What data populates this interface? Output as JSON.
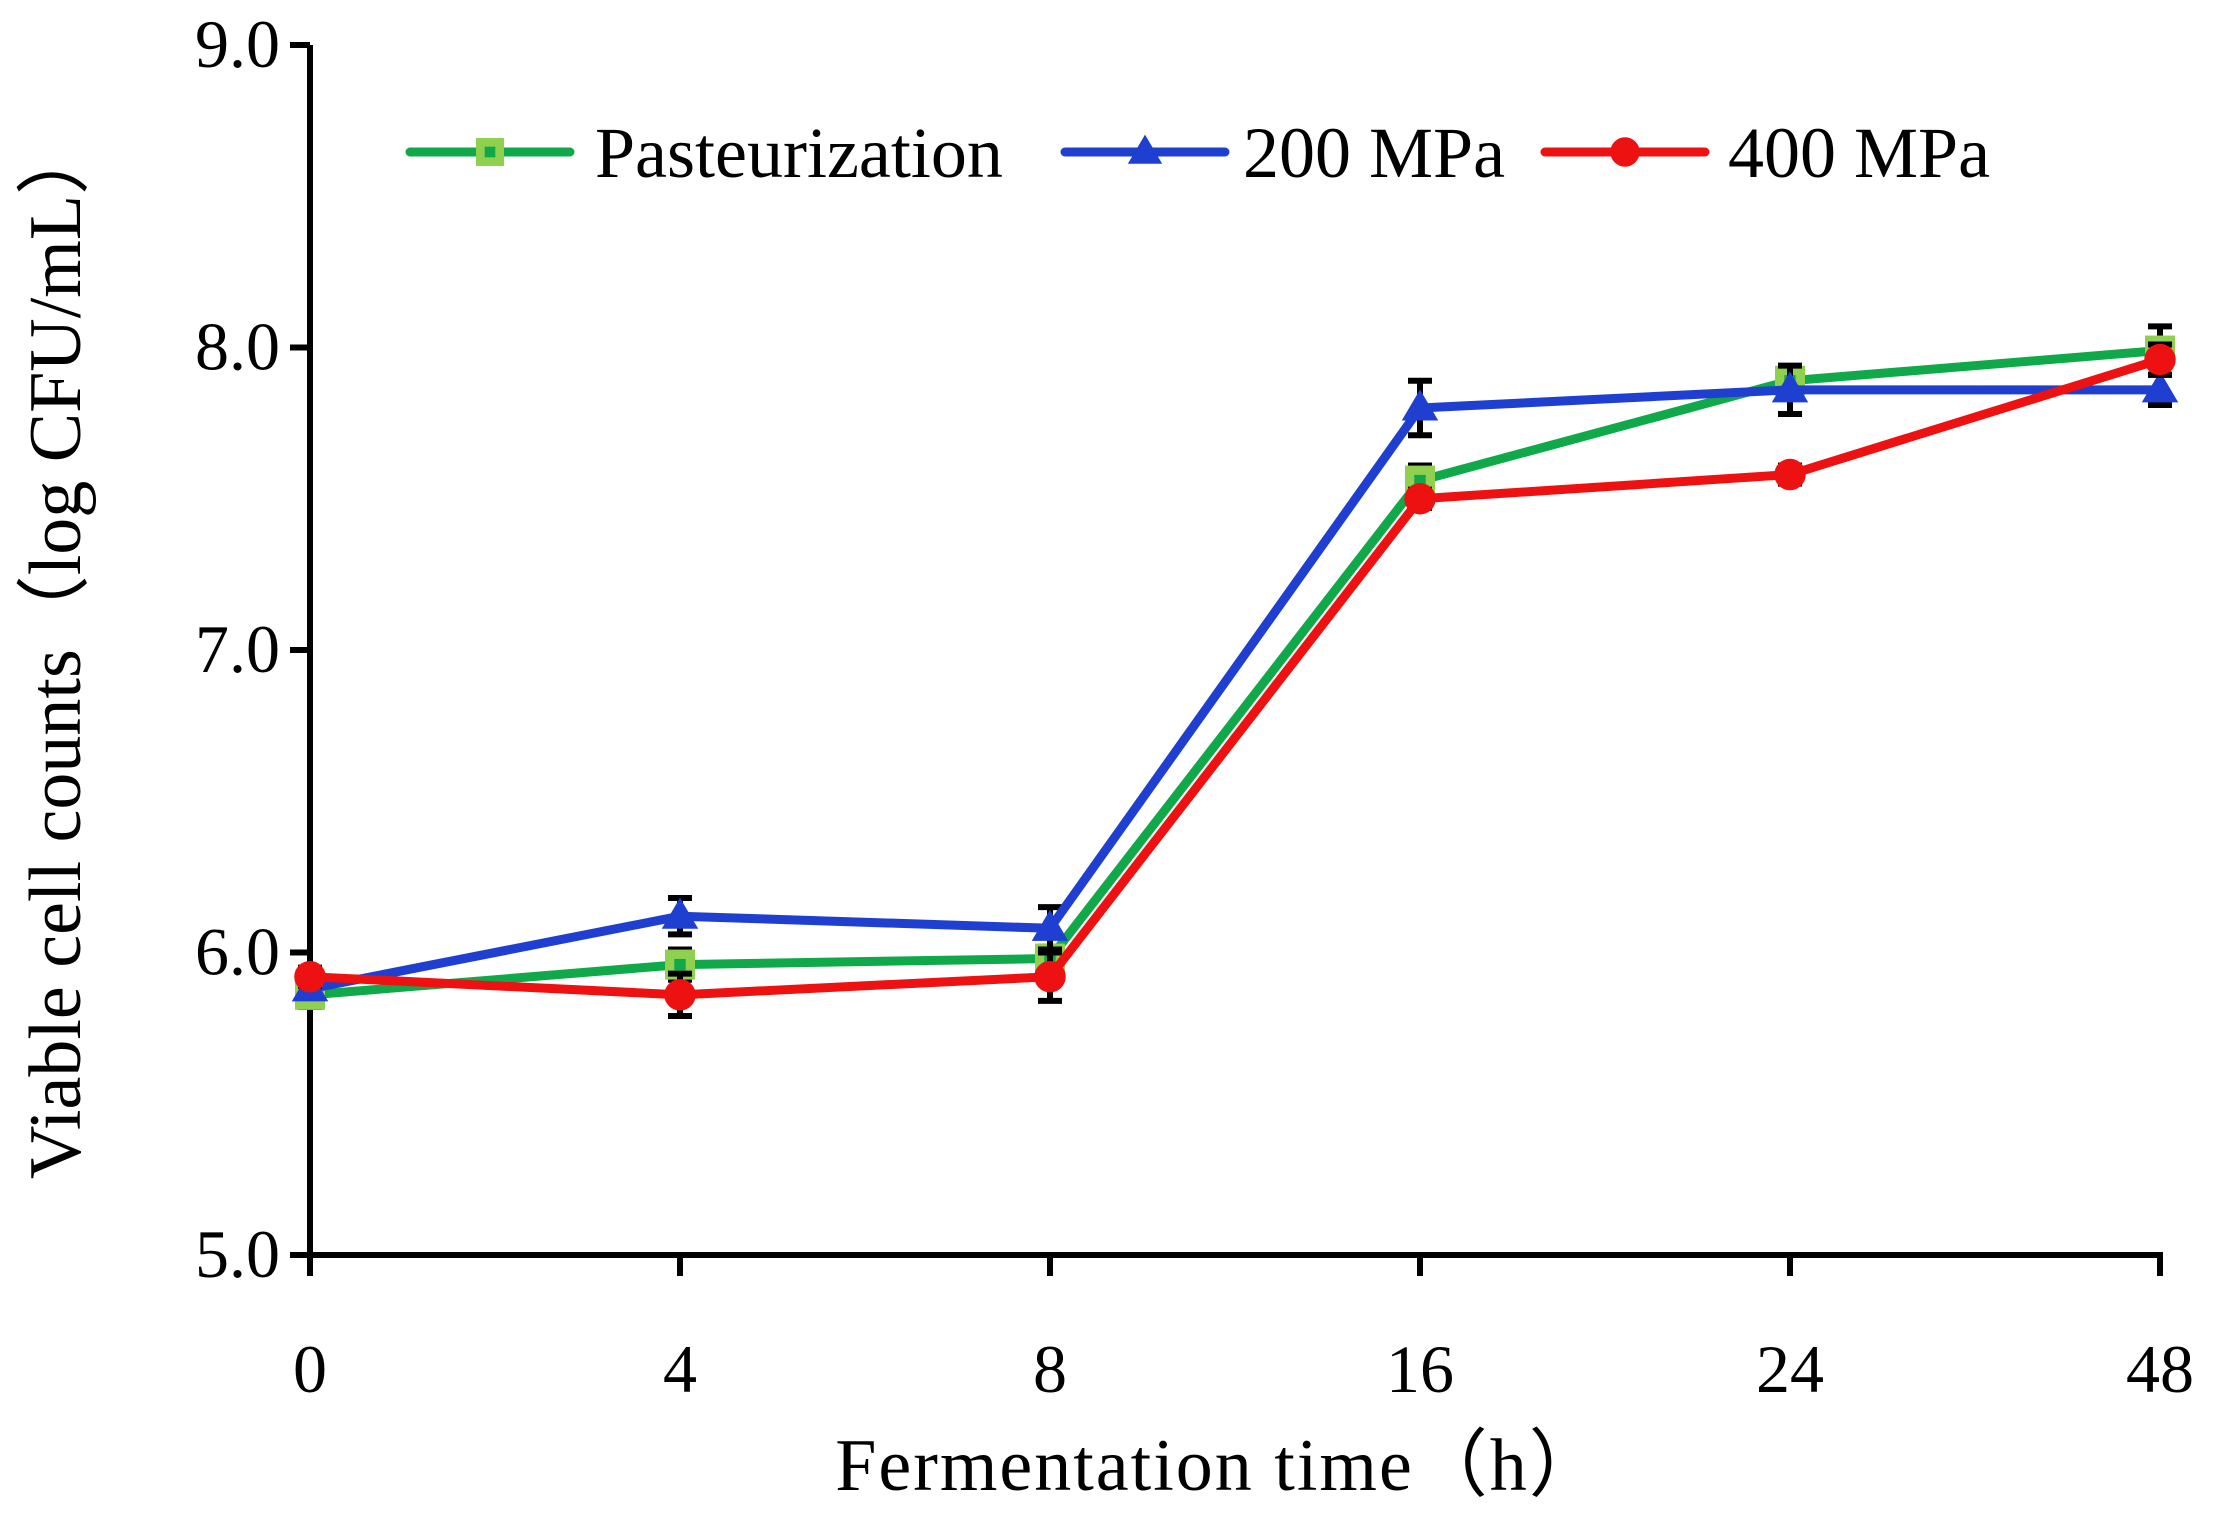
{
  "chart_data": {
    "type": "line",
    "title": "",
    "xlabel": "Fermentation time（h）",
    "ylabel": "Viable cell counts（log CFU/mL）",
    "categories": [
      "0",
      "4",
      "8",
      "16",
      "24",
      "48"
    ],
    "ylim": [
      5.0,
      9.0
    ],
    "yticks": [
      "5.0",
      "6.0",
      "7.0",
      "8.0",
      "9.0"
    ],
    "grid": false,
    "legend_position": "top",
    "series": [
      {
        "name": "Pasteurization",
        "color": "#10a94a",
        "marker": "square",
        "marker_fill": "#8fd14f",
        "values": [
          5.86,
          5.96,
          5.98,
          7.56,
          7.89,
          7.99
        ],
        "errors": [
          0.04,
          0.05,
          0.04,
          0.05,
          0.04,
          0.08
        ]
      },
      {
        "name": "200 MPa",
        "color": "#1f3fd1",
        "marker": "triangle",
        "marker_fill": "#1f3fd1",
        "values": [
          5.88,
          6.12,
          6.08,
          7.8,
          7.86,
          7.86
        ],
        "errors": [
          0.03,
          0.06,
          0.07,
          0.09,
          0.08,
          0.05
        ]
      },
      {
        "name": "400 MPa",
        "color": "#ee1111",
        "marker": "circle",
        "marker_fill": "#ee1111",
        "values": [
          5.92,
          5.86,
          5.92,
          7.5,
          7.58,
          7.96
        ],
        "errors": [
          0.03,
          0.07,
          0.08,
          0.03,
          0.03,
          0.05
        ]
      }
    ]
  }
}
